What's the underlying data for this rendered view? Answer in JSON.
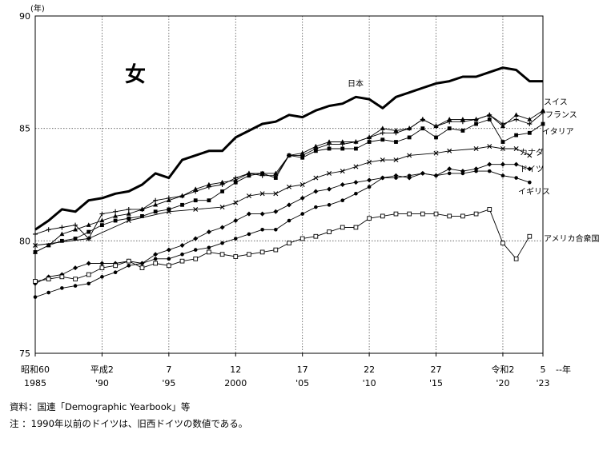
{
  "chart_data": {
    "type": "line",
    "title": "女",
    "ylabel": "(年)",
    "xlabel_suffix": "--年",
    "ylim": [
      75,
      90
    ],
    "yticks": [
      75,
      80,
      85,
      90
    ],
    "xlim": [
      1985,
      2023
    ],
    "xticks": [
      {
        "x": 1985,
        "era": "昭和60",
        "ad": "1985"
      },
      {
        "x": 1990,
        "era": "平成2",
        "ad": "'90"
      },
      {
        "x": 1995,
        "era": "7",
        "ad": "'95"
      },
      {
        "x": 2000,
        "era": "12",
        "ad": "2000"
      },
      {
        "x": 2005,
        "era": "17",
        "ad": "'05"
      },
      {
        "x": 2010,
        "era": "22",
        "ad": "'10"
      },
      {
        "x": 2015,
        "era": "27",
        "ad": "'15"
      },
      {
        "x": 2020,
        "era": "令和2",
        "ad": "'20"
      },
      {
        "x": 2023,
        "era": "5",
        "ad": "'23"
      }
    ],
    "grid": true,
    "series": [
      {
        "name": "日本",
        "marker": "none",
        "points": [
          [
            1985,
            80.5
          ],
          [
            1986,
            80.9
          ],
          [
            1987,
            81.4
          ],
          [
            1988,
            81.3
          ],
          [
            1989,
            81.8
          ],
          [
            1990,
            81.9
          ],
          [
            1991,
            82.1
          ],
          [
            1992,
            82.2
          ],
          [
            1993,
            82.5
          ],
          [
            1994,
            83.0
          ],
          [
            1995,
            82.8
          ],
          [
            1996,
            83.6
          ],
          [
            1997,
            83.8
          ],
          [
            1998,
            84.0
          ],
          [
            1999,
            84.0
          ],
          [
            2000,
            84.6
          ],
          [
            2001,
            84.9
          ],
          [
            2002,
            85.2
          ],
          [
            2003,
            85.3
          ],
          [
            2004,
            85.6
          ],
          [
            2005,
            85.5
          ],
          [
            2006,
            85.8
          ],
          [
            2007,
            86.0
          ],
          [
            2008,
            86.1
          ],
          [
            2009,
            86.4
          ],
          [
            2010,
            86.3
          ],
          [
            2011,
            85.9
          ],
          [
            2012,
            86.4
          ],
          [
            2013,
            86.6
          ],
          [
            2014,
            86.8
          ],
          [
            2015,
            87.0
          ],
          [
            2016,
            87.1
          ],
          [
            2017,
            87.3
          ],
          [
            2018,
            87.3
          ],
          [
            2019,
            87.5
          ],
          [
            2020,
            87.7
          ],
          [
            2021,
            87.6
          ],
          [
            2022,
            87.1
          ],
          [
            2023,
            87.1
          ]
        ]
      },
      {
        "name": "スイス",
        "marker": "triangle",
        "points": [
          [
            1985,
            79.5
          ],
          [
            1986,
            79.8
          ],
          [
            1987,
            80.3
          ],
          [
            1988,
            80.5
          ],
          [
            1989,
            80.7
          ],
          [
            1990,
            80.9
          ],
          [
            1991,
            81.1
          ],
          [
            1992,
            81.2
          ],
          [
            1993,
            81.4
          ],
          [
            1994,
            81.6
          ],
          [
            1995,
            81.8
          ],
          [
            1996,
            82.0
          ],
          [
            1997,
            82.3
          ],
          [
            1998,
            82.5
          ],
          [
            1999,
            82.6
          ],
          [
            2000,
            82.7
          ],
          [
            2001,
            83.0
          ],
          [
            2002,
            83.0
          ],
          [
            2003,
            83.0
          ],
          [
            2004,
            83.8
          ],
          [
            2005,
            83.9
          ],
          [
            2006,
            84.2
          ],
          [
            2007,
            84.4
          ],
          [
            2008,
            84.4
          ],
          [
            2009,
            84.4
          ],
          [
            2010,
            84.6
          ],
          [
            2011,
            85.0
          ],
          [
            2012,
            84.9
          ],
          [
            2013,
            85.0
          ],
          [
            2014,
            85.4
          ],
          [
            2015,
            85.1
          ],
          [
            2016,
            85.4
          ],
          [
            2017,
            85.4
          ],
          [
            2018,
            85.4
          ],
          [
            2019,
            85.6
          ],
          [
            2020,
            85.1
          ],
          [
            2021,
            85.6
          ],
          [
            2022,
            85.4
          ],
          [
            2023,
            85.8
          ]
        ]
      },
      {
        "name": "フランス",
        "marker": "plus",
        "points": [
          [
            1985,
            80.3
          ],
          [
            1986,
            80.5
          ],
          [
            1987,
            80.6
          ],
          [
            1988,
            80.7
          ],
          [
            1989,
            80.1
          ],
          [
            1990,
            81.2
          ],
          [
            1991,
            81.3
          ],
          [
            1992,
            81.4
          ],
          [
            1993,
            81.4
          ],
          [
            1994,
            81.8
          ],
          [
            1995,
            81.9
          ],
          [
            1996,
            82.0
          ],
          [
            1997,
            82.2
          ],
          [
            1998,
            82.4
          ],
          [
            1999,
            82.5
          ],
          [
            2000,
            82.8
          ],
          [
            2001,
            83.0
          ],
          [
            2002,
            82.9
          ],
          [
            2003,
            82.9
          ],
          [
            2004,
            83.8
          ],
          [
            2005,
            83.8
          ],
          [
            2006,
            84.1
          ],
          [
            2007,
            84.3
          ],
          [
            2008,
            84.3
          ],
          [
            2009,
            84.4
          ],
          [
            2010,
            84.6
          ],
          [
            2011,
            84.8
          ],
          [
            2012,
            84.8
          ],
          [
            2013,
            85.0
          ],
          [
            2014,
            85.4
          ],
          [
            2015,
            85.1
          ],
          [
            2016,
            85.3
          ],
          [
            2017,
            85.3
          ],
          [
            2018,
            85.4
          ],
          [
            2019,
            85.6
          ],
          [
            2020,
            85.2
          ],
          [
            2021,
            85.4
          ],
          [
            2022,
            85.2
          ],
          [
            2023,
            85.7
          ]
        ]
      },
      {
        "name": "イタリア",
        "marker": "square",
        "points": [
          [
            1985,
            79.5
          ],
          [
            1986,
            79.8
          ],
          [
            1987,
            80.0
          ],
          [
            1988,
            80.1
          ],
          [
            1989,
            80.4
          ],
          [
            1990,
            80.7
          ],
          [
            1991,
            80.9
          ],
          [
            1992,
            81.0
          ],
          [
            1993,
            81.1
          ],
          [
            1994,
            81.3
          ],
          [
            1995,
            81.4
          ],
          [
            1996,
            81.6
          ],
          [
            1997,
            81.8
          ],
          [
            1998,
            81.8
          ],
          [
            1999,
            82.2
          ],
          [
            2000,
            82.6
          ],
          [
            2001,
            82.9
          ],
          [
            2002,
            83.0
          ],
          [
            2003,
            82.8
          ],
          [
            2004,
            83.8
          ],
          [
            2005,
            83.7
          ],
          [
            2006,
            84.0
          ],
          [
            2007,
            84.1
          ],
          [
            2008,
            84.1
          ],
          [
            2009,
            84.1
          ],
          [
            2010,
            84.4
          ],
          [
            2011,
            84.5
          ],
          [
            2012,
            84.4
          ],
          [
            2013,
            84.6
          ],
          [
            2014,
            85.0
          ],
          [
            2015,
            84.6
          ],
          [
            2016,
            85.0
          ],
          [
            2017,
            84.9
          ],
          [
            2018,
            85.2
          ],
          [
            2019,
            85.4
          ],
          [
            2020,
            84.4
          ],
          [
            2021,
            84.7
          ],
          [
            2022,
            84.8
          ],
          [
            2023,
            85.2
          ]
        ]
      },
      {
        "name": "カナダ",
        "marker": "cross",
        "points": [
          [
            1985,
            79.8
          ],
          [
            1989,
            80.1
          ],
          [
            1992,
            80.9
          ],
          [
            1995,
            81.3
          ],
          [
            1997,
            81.4
          ],
          [
            1999,
            81.5
          ],
          [
            2000,
            81.7
          ],
          [
            2001,
            82.0
          ],
          [
            2002,
            82.1
          ],
          [
            2003,
            82.1
          ],
          [
            2004,
            82.4
          ],
          [
            2005,
            82.5
          ],
          [
            2006,
            82.8
          ],
          [
            2007,
            83.0
          ],
          [
            2008,
            83.1
          ],
          [
            2009,
            83.3
          ],
          [
            2010,
            83.5
          ],
          [
            2011,
            83.6
          ],
          [
            2012,
            83.6
          ],
          [
            2013,
            83.8
          ],
          [
            2015,
            83.9
          ],
          [
            2016,
            84.0
          ],
          [
            2018,
            84.1
          ],
          [
            2019,
            84.2
          ],
          [
            2020,
            84.1
          ],
          [
            2021,
            84.1
          ],
          [
            2022,
            83.8
          ]
        ]
      },
      {
        "name": "ドイツ",
        "marker": "diamond",
        "points": [
          [
            1985,
            78.1
          ],
          [
            1986,
            78.4
          ],
          [
            1987,
            78.5
          ],
          [
            1988,
            78.8
          ],
          [
            1989,
            79.0
          ],
          [
            1990,
            79.0
          ],
          [
            1991,
            79.0
          ],
          [
            1992,
            79.1
          ],
          [
            1993,
            79.0
          ],
          [
            1994,
            79.4
          ],
          [
            1995,
            79.6
          ],
          [
            1996,
            79.8
          ],
          [
            1997,
            80.1
          ],
          [
            1998,
            80.4
          ],
          [
            1999,
            80.6
          ],
          [
            2000,
            80.9
          ],
          [
            2001,
            81.2
          ],
          [
            2002,
            81.2
          ],
          [
            2003,
            81.3
          ],
          [
            2004,
            81.6
          ],
          [
            2005,
            81.9
          ],
          [
            2006,
            82.2
          ],
          [
            2007,
            82.3
          ],
          [
            2008,
            82.5
          ],
          [
            2009,
            82.6
          ],
          [
            2010,
            82.7
          ],
          [
            2011,
            82.8
          ],
          [
            2012,
            82.9
          ],
          [
            2013,
            82.8
          ],
          [
            2014,
            83.0
          ],
          [
            2015,
            82.9
          ],
          [
            2016,
            83.2
          ],
          [
            2017,
            83.1
          ],
          [
            2018,
            83.2
          ],
          [
            2019,
            83.4
          ],
          [
            2020,
            83.4
          ],
          [
            2021,
            83.4
          ],
          [
            2022,
            83.2
          ]
        ]
      },
      {
        "name": "イギリス",
        "marker": "circle",
        "points": [
          [
            1985,
            77.5
          ],
          [
            1986,
            77.7
          ],
          [
            1987,
            77.9
          ],
          [
            1988,
            78.0
          ],
          [
            1989,
            78.1
          ],
          [
            1990,
            78.4
          ],
          [
            1991,
            78.6
          ],
          [
            1992,
            78.9
          ],
          [
            1993,
            79.0
          ],
          [
            1994,
            79.2
          ],
          [
            1995,
            79.2
          ],
          [
            1996,
            79.4
          ],
          [
            1997,
            79.6
          ],
          [
            1998,
            79.7
          ],
          [
            1999,
            79.9
          ],
          [
            2000,
            80.1
          ],
          [
            2001,
            80.3
          ],
          [
            2002,
            80.5
          ],
          [
            2003,
            80.5
          ],
          [
            2004,
            80.9
          ],
          [
            2005,
            81.2
          ],
          [
            2006,
            81.5
          ],
          [
            2007,
            81.6
          ],
          [
            2008,
            81.8
          ],
          [
            2009,
            82.1
          ],
          [
            2010,
            82.4
          ],
          [
            2011,
            82.8
          ],
          [
            2012,
            82.8
          ],
          [
            2013,
            82.9
          ],
          [
            2014,
            83.0
          ],
          [
            2015,
            82.9
          ],
          [
            2016,
            83.0
          ],
          [
            2017,
            83.0
          ],
          [
            2018,
            83.1
          ],
          [
            2019,
            83.1
          ],
          [
            2020,
            82.9
          ],
          [
            2021,
            82.8
          ],
          [
            2022,
            82.6
          ]
        ]
      },
      {
        "name": "アメリカ合衆国",
        "marker": "open-square",
        "points": [
          [
            1985,
            78.2
          ],
          [
            1986,
            78.3
          ],
          [
            1987,
            78.4
          ],
          [
            1988,
            78.3
          ],
          [
            1989,
            78.5
          ],
          [
            1990,
            78.8
          ],
          [
            1991,
            78.9
          ],
          [
            1992,
            79.1
          ],
          [
            1993,
            78.8
          ],
          [
            1994,
            79.0
          ],
          [
            1995,
            78.9
          ],
          [
            1996,
            79.1
          ],
          [
            1997,
            79.2
          ],
          [
            1998,
            79.5
          ],
          [
            1999,
            79.4
          ],
          [
            2000,
            79.3
          ],
          [
            2001,
            79.4
          ],
          [
            2002,
            79.5
          ],
          [
            2003,
            79.6
          ],
          [
            2004,
            79.9
          ],
          [
            2005,
            80.1
          ],
          [
            2006,
            80.2
          ],
          [
            2007,
            80.4
          ],
          [
            2008,
            80.6
          ],
          [
            2009,
            80.6
          ],
          [
            2010,
            81.0
          ],
          [
            2011,
            81.1
          ],
          [
            2012,
            81.2
          ],
          [
            2013,
            81.2
          ],
          [
            2014,
            81.2
          ],
          [
            2015,
            81.2
          ],
          [
            2016,
            81.1
          ],
          [
            2017,
            81.1
          ],
          [
            2018,
            81.2
          ],
          [
            2019,
            81.4
          ],
          [
            2020,
            79.9
          ],
          [
            2021,
            79.2
          ],
          [
            2022,
            80.2
          ]
        ]
      }
    ]
  },
  "notes": {
    "source": "資料：国連「Demographic Yearbook」等",
    "footnote": "注 ：1990年以前のドイツは、旧西ドイツの数値である。"
  }
}
